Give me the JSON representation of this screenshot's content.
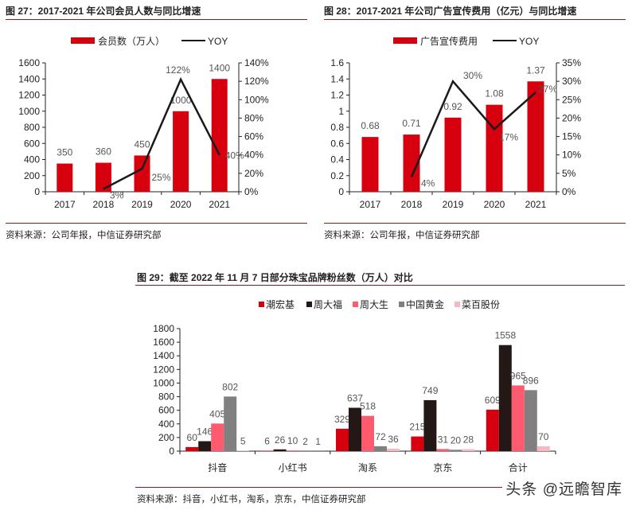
{
  "figures": [
    {
      "title": "图 27：2017-2021 年公司会员人数与同比增速",
      "source": "资料来源：公司年报，中信证券研究部"
    },
    {
      "title": "图 28：2017-2021 年公司广告宣传费用（亿元）与同比增速",
      "source": "资料来源：公司年报，中信证券研究部"
    },
    {
      "title": "图 29：截至 2022 年 11 月 7 日部分珠宝品牌粉丝数（万人）对比",
      "source": "资料来源：抖音，小红书，淘系，京东，中信证券研究部"
    }
  ],
  "watermark": "头条 @远瞻智库",
  "colors": {
    "bar_red": "#d7000f",
    "line": "#1a1a1a",
    "rule": "#8b1a1a",
    "black_bar": "#231815",
    "pink": "#ff5a6e",
    "gray": "#808080",
    "light_pink": "#f9b8c0"
  },
  "chart_data": [
    {
      "type": "bar+line",
      "title": "图 27：2017-2021 年公司会员人数与同比增速",
      "categories": [
        "2017",
        "2018",
        "2019",
        "2020",
        "2021"
      ],
      "series": [
        {
          "name": "会员数（万人）",
          "type": "bar",
          "axis": "left",
          "values": [
            350,
            360,
            450,
            1000,
            1400
          ],
          "labels": [
            "350",
            "360",
            "450",
            "1000",
            "1400"
          ]
        },
        {
          "name": "YOY",
          "type": "line",
          "axis": "right",
          "values": [
            null,
            3,
            25,
            122,
            40
          ],
          "labels": [
            "",
            "3%",
            "25%",
            "122%",
            "40%"
          ]
        }
      ],
      "left_axis": {
        "ticks": [
          "0",
          "200",
          "400",
          "600",
          "800",
          "1000",
          "1200",
          "1400",
          "1600"
        ],
        "ylim": [
          0,
          1600
        ]
      },
      "right_axis": {
        "ticks": [
          "0%",
          "20%",
          "40%",
          "60%",
          "80%",
          "100%",
          "120%",
          "140%"
        ],
        "ylim": [
          0,
          140
        ]
      },
      "legend": [
        "会员数（万人）",
        "YOY"
      ],
      "legend_position": "top",
      "grid": false
    },
    {
      "type": "bar+line",
      "title": "图 28：2017-2021 年公司广告宣传费用（亿元）与同比增速",
      "categories": [
        "2017",
        "2018",
        "2019",
        "2020",
        "2021"
      ],
      "series": [
        {
          "name": "广告宣传费用",
          "type": "bar",
          "axis": "left",
          "values": [
            0.68,
            0.71,
            0.92,
            1.08,
            1.37
          ],
          "labels": [
            "0.68",
            "0.71",
            "0.92",
            "1.08",
            "1.37"
          ]
        },
        {
          "name": "YOY",
          "type": "line",
          "axis": "right",
          "values": [
            null,
            4,
            30,
            17,
            27
          ],
          "labels": [
            "",
            "4%",
            "30%",
            "17%",
            "27%"
          ]
        }
      ],
      "left_axis": {
        "ticks": [
          "0",
          "0.2",
          "0.4",
          "0.6",
          "0.8",
          "1",
          "1.2",
          "1.4",
          "1.6"
        ],
        "ylim": [
          0,
          1.6
        ]
      },
      "right_axis": {
        "ticks": [
          "0%",
          "5%",
          "10%",
          "15%",
          "20%",
          "25%",
          "30%",
          "35%"
        ],
        "ylim": [
          0,
          35
        ]
      },
      "legend": [
        "广告宣传费用",
        "YOY"
      ],
      "legend_position": "top",
      "grid": false
    },
    {
      "type": "bar",
      "title": "图 29：截至 2022 年 11 月 7 日部分珠宝品牌粉丝数（万人）对比",
      "categories": [
        "抖音",
        "小红书",
        "淘系",
        "京东",
        "合计"
      ],
      "series": [
        {
          "name": "潮宏基",
          "color": "#d7000f",
          "values": [
            60,
            6,
            329,
            215,
            609
          ]
        },
        {
          "name": "周大福",
          "color": "#231815",
          "values": [
            146,
            26,
            637,
            749,
            1558
          ]
        },
        {
          "name": "周大生",
          "color": "#ff5a6e",
          "values": [
            405,
            10,
            518,
            31,
            965
          ]
        },
        {
          "name": "中国黄金",
          "color": "#808080",
          "values": [
            802,
            2,
            72,
            20,
            896
          ]
        },
        {
          "name": "菜百股份",
          "color": "#f9b8c0",
          "values": [
            5,
            1,
            36,
            28,
            70
          ]
        }
      ],
      "y_axis": {
        "ticks": [
          "0",
          "200",
          "400",
          "600",
          "800",
          "1000",
          "1200",
          "1400",
          "1600",
          "1800"
        ],
        "ylim": [
          0,
          1800
        ]
      },
      "legend_position": "top-right",
      "grid": false
    }
  ]
}
